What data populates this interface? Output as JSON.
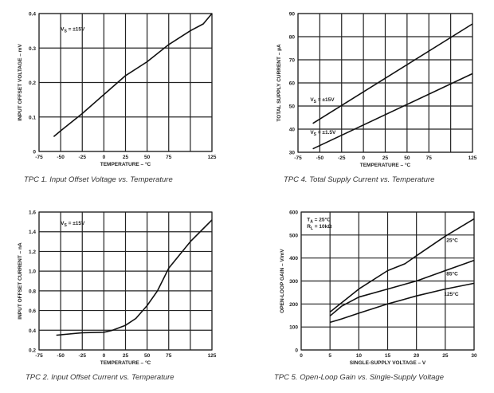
{
  "chart_data": [
    {
      "id": "tpc1",
      "type": "line",
      "title": "TPC 1.  Input Offset Voltage vs. Temperature",
      "xlabel": "TEMPERATURE – °C",
      "ylabel": "INPUT OFFSET VOLTAGE – mV",
      "xlim": [
        -75,
        125
      ],
      "ylim": [
        0,
        0.4
      ],
      "xticks": [
        "-75",
        "-50",
        "-25",
        "0",
        "25",
        "50",
        "75",
        "125"
      ],
      "xtick_values": [
        -75,
        -50,
        -25,
        0,
        25,
        50,
        75,
        125
      ],
      "yticks": [
        "0",
        "0.1",
        "0.2",
        "0.3",
        "0.4"
      ],
      "ytick_values": [
        0,
        0.1,
        0.2,
        0.3,
        0.4
      ],
      "grid": true,
      "annotations": [
        {
          "main": "V",
          "sub": "S",
          "rest": " = ±15V",
          "at": [
            -50,
            0.35
          ]
        }
      ],
      "series": [
        {
          "name": "VS = ±15V",
          "x": [
            -58,
            -50,
            -25,
            0,
            25,
            50,
            75,
            100,
            115,
            125
          ],
          "y": [
            0.043,
            0.06,
            0.11,
            0.165,
            0.22,
            0.26,
            0.31,
            0.35,
            0.37,
            0.4
          ]
        }
      ]
    },
    {
      "id": "tpc4",
      "type": "line",
      "title": "TPC 4.  Total Supply Current vs. Temperature",
      "xlabel": "TEMPERATURE – °C",
      "ylabel": "TOTAL SUPPLY CURRENT – µA",
      "xlim": [
        -75,
        125
      ],
      "ylim": [
        30,
        90
      ],
      "xticks": [
        "-75",
        "-50",
        "-25",
        "0",
        "25",
        "50",
        "75",
        "125"
      ],
      "xtick_values": [
        -75,
        -50,
        -25,
        0,
        25,
        50,
        75,
        125
      ],
      "yticks": [
        "30",
        "40",
        "50",
        "60",
        "70",
        "80",
        "90"
      ],
      "ytick_values": [
        30,
        40,
        50,
        60,
        70,
        80,
        90
      ],
      "grid": true,
      "annotations": [
        {
          "main": "V",
          "sub": "S",
          "rest": " = ±15V",
          "at": [
            -61,
            52
          ]
        },
        {
          "main": "V",
          "sub": "S",
          "rest": " = ±1.5V",
          "at": [
            -61,
            38
          ]
        }
      ],
      "series": [
        {
          "name": "VS = ±15V",
          "x": [
            -58,
            125
          ],
          "y": [
            42.5,
            85.5
          ]
        },
        {
          "name": "VS = ±1.5V",
          "x": [
            -58,
            125
          ],
          "y": [
            31.5,
            64
          ]
        }
      ]
    },
    {
      "id": "tpc2",
      "type": "line",
      "title": "TPC 2.  Input Offset Current vs. Temperature",
      "xlabel": "TEMPERATURE – °C",
      "ylabel": "INPUT OFFSET CURRENT – nA",
      "xlim": [
        -75,
        125
      ],
      "ylim": [
        0.2,
        1.6
      ],
      "xticks": [
        "-75",
        "-50",
        "-25",
        "0",
        "25",
        "50",
        "75",
        "125"
      ],
      "xtick_values": [
        -75,
        -50,
        -25,
        0,
        25,
        50,
        75,
        125
      ],
      "yticks": [
        "0.2",
        "0.4",
        "0.6",
        "0.8",
        "1.0",
        "1.2",
        "1.4",
        "1.6"
      ],
      "ytick_values": [
        0.2,
        0.4,
        0.6,
        0.8,
        1.0,
        1.2,
        1.4,
        1.6
      ],
      "grid": true,
      "annotations": [
        {
          "main": "V",
          "sub": "S",
          "rest": " = ±15V",
          "at": [
            -50,
            1.47
          ]
        }
      ],
      "series": [
        {
          "name": "VS = ±15V",
          "x": [
            -55,
            -25,
            0,
            10,
            25,
            37,
            50,
            62,
            75,
            100,
            125
          ],
          "y": [
            0.35,
            0.375,
            0.38,
            0.4,
            0.45,
            0.52,
            0.65,
            0.8,
            1.03,
            1.3,
            1.52
          ]
        }
      ]
    },
    {
      "id": "tpc5",
      "type": "line",
      "title": "TPC 5.  Open-Loop Gain vs. Single-Supply Voltage",
      "xlabel": "SINGLE-SUPPLY VOLTAGE – V",
      "ylabel": "OPEN-LOOP GAIN – V/mV",
      "xlim": [
        0,
        30
      ],
      "ylim": [
        0,
        600
      ],
      "xticks": [
        "0",
        "5",
        "10",
        "15",
        "20",
        "25",
        "30"
      ],
      "xtick_values": [
        0,
        5,
        10,
        15,
        20,
        25,
        30
      ],
      "yticks": [
        "0",
        "100",
        "200",
        "300",
        "400",
        "500",
        "600"
      ],
      "ytick_values": [
        0,
        100,
        200,
        300,
        400,
        500,
        600
      ],
      "grid": true,
      "annotations": [
        {
          "main": "T",
          "sub": "A",
          "rest": " = 25°C",
          "at": [
            1,
            560
          ]
        },
        {
          "main": "R",
          "sub": "L",
          "rest": " = 10kΩ",
          "at": [
            1,
            530
          ]
        },
        {
          "main": "25°C",
          "sub": "",
          "rest": "",
          "at": [
            25.2,
            470
          ]
        },
        {
          "main": "85°C",
          "sub": "",
          "rest": "",
          "at": [
            25.2,
            325
          ]
        },
        {
          "main": "125°C",
          "sub": "",
          "rest": "",
          "at": [
            24.8,
            235
          ]
        }
      ],
      "series": [
        {
          "name": "25°C",
          "x": [
            5,
            8,
            10,
            15,
            18,
            20,
            25,
            30
          ],
          "y": [
            165,
            225,
            265,
            345,
            375,
            410,
            495,
            570
          ]
        },
        {
          "name": "85°C",
          "x": [
            5,
            7,
            10,
            15,
            20,
            25,
            30
          ],
          "y": [
            148,
            190,
            230,
            265,
            300,
            345,
            390
          ]
        },
        {
          "name": "125°C",
          "x": [
            5,
            7,
            10,
            15,
            20,
            25,
            30
          ],
          "y": [
            120,
            135,
            160,
            200,
            235,
            265,
            290
          ]
        }
      ]
    }
  ]
}
